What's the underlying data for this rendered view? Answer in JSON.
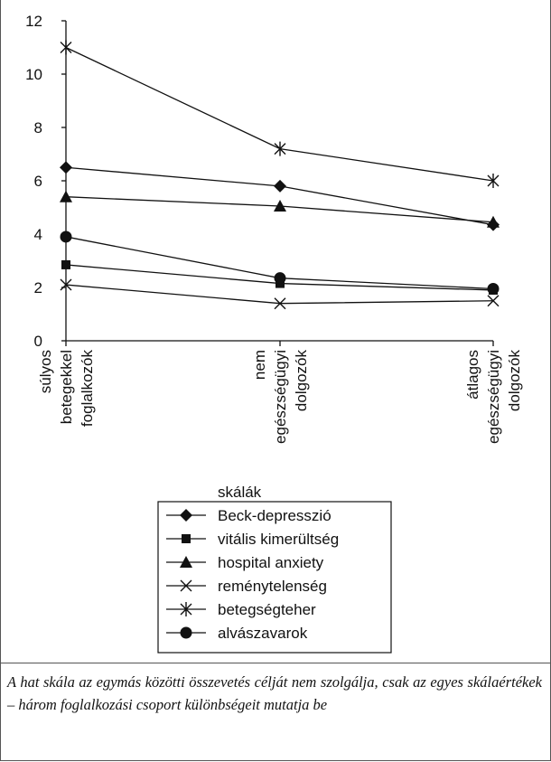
{
  "chart_data": {
    "type": "line",
    "categories": [
      [
        "súlyos",
        "betegekkel",
        "foglalkozók"
      ],
      [
        "nem",
        "egészségügyi",
        "dolgozók"
      ],
      [
        "átlagos",
        "egészségügyi",
        "dolgozók"
      ]
    ],
    "ylim": [
      0,
      12
    ],
    "yticks": [
      0,
      2,
      4,
      6,
      8,
      10,
      12
    ],
    "grid": false,
    "series": [
      {
        "name": "Beck-depresszió",
        "marker": "diamond",
        "values": [
          6.5,
          5.8,
          4.35
        ]
      },
      {
        "name": "vitális kimerültség",
        "marker": "square",
        "values": [
          2.85,
          2.15,
          1.9
        ]
      },
      {
        "name": "hospital anxiety",
        "marker": "triangle",
        "values": [
          5.4,
          5.05,
          4.45
        ]
      },
      {
        "name": "reménytelenség",
        "marker": "x",
        "values": [
          2.1,
          1.4,
          1.5
        ]
      },
      {
        "name": "betegségteher",
        "marker": "star",
        "values": [
          11.0,
          7.2,
          6.0
        ]
      },
      {
        "name": "alvászavarok",
        "marker": "circle",
        "values": [
          3.9,
          2.35,
          1.95
        ]
      }
    ],
    "legend": {
      "title": "skálák",
      "placement": "bottom-center"
    }
  },
  "caption": "A hat skála az egymás közötti összevetés célját nem szolgálja, csak az egyes skálaértékek – három foglalkozási csoport különbségeit mutatja be"
}
